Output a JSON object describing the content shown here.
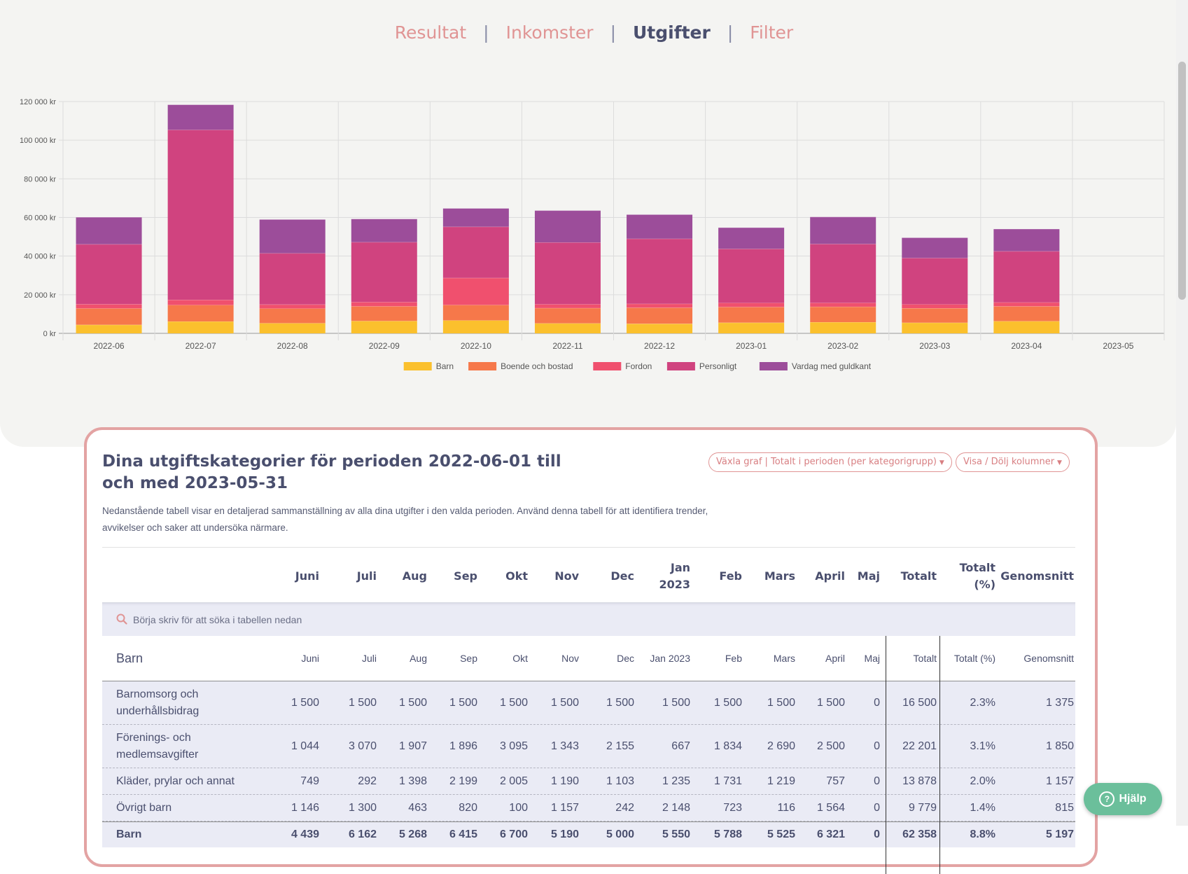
{
  "nav": {
    "tabs": [
      {
        "label": "Resultat",
        "active": false
      },
      {
        "label": "Inkomster",
        "active": false
      },
      {
        "label": "Utgifter",
        "active": true
      },
      {
        "label": "Filter",
        "active": false
      }
    ],
    "separator": "|"
  },
  "colors": {
    "barn": "#fbc02d",
    "boende": "#f6784a",
    "fordon": "#f0506e",
    "personligt": "#d0437f",
    "vardag": "#9c4d9a",
    "accent": "#e09494",
    "help": "#6bbf9b"
  },
  "chart_data": {
    "type": "bar",
    "stacked": true,
    "title": "",
    "xlabel": "",
    "ylabel": "",
    "ylim": [
      0,
      120000
    ],
    "yticks": [
      "0 kr",
      "20 000 kr",
      "40 000 kr",
      "60 000 kr",
      "80 000 kr",
      "100 000 kr",
      "120 000 kr"
    ],
    "grid": true,
    "legend_position": "bottom",
    "categories": [
      "2022-06",
      "2022-07",
      "2022-08",
      "2022-09",
      "2022-10",
      "2022-11",
      "2022-12",
      "2023-01",
      "2023-02",
      "2023-03",
      "2023-04",
      "2023-05"
    ],
    "series": [
      {
        "name": "Barn",
        "color": "#fbc02d",
        "values": [
          4439,
          6162,
          5268,
          6415,
          6700,
          5190,
          5000,
          5550,
          5788,
          5525,
          6321,
          0
        ]
      },
      {
        "name": "Boende och bostad",
        "color": "#f6784a",
        "values": [
          8500,
          8500,
          7600,
          7600,
          8000,
          7900,
          8300,
          8100,
          8000,
          7500,
          7700,
          0
        ]
      },
      {
        "name": "Fordon",
        "color": "#f0506e",
        "values": [
          2200,
          2700,
          2100,
          2200,
          14000,
          2000,
          2000,
          2100,
          2000,
          2000,
          2000,
          0
        ]
      },
      {
        "name": "Personligt",
        "color": "#d0437f",
        "values": [
          31000,
          88000,
          26500,
          31000,
          26500,
          32000,
          33700,
          28000,
          30500,
          24000,
          26500,
          0
        ]
      },
      {
        "name": "Vardag med guldkant",
        "color": "#9c4d9a",
        "values": [
          14000,
          13000,
          17500,
          12000,
          9500,
          16500,
          12500,
          11000,
          14000,
          10500,
          11500,
          0
        ]
      }
    ]
  },
  "card": {
    "title": "Dina utgiftskategorier för perioden 2022-06-01 till och med 2023-05-31",
    "toggle_graph_label": "Växla graf | Totalt i perioden (per kategorigrupp)",
    "toggle_columns_label": "Visa / Dölj kolumner",
    "description": "Nedanstående tabell visar en detaljerad sammanställning av alla dina utgifter i den valda perioden. Använd denna tabell för att identifiera trender, avvikelser och saker att undersöka närmare.",
    "column_headers": [
      "Juni",
      "Juli",
      "Aug",
      "Sep",
      "Okt",
      "Nov",
      "Dec",
      "Jan 2023",
      "Feb",
      "Mars",
      "April",
      "Maj",
      "Totalt",
      "Totalt (%)",
      "Genomsnitt"
    ],
    "search_placeholder": "Börja skriv för att söka i tabellen nedan"
  },
  "table": {
    "group_name": "Barn",
    "columns": [
      "Juni",
      "Juli",
      "Aug",
      "Sep",
      "Okt",
      "Nov",
      "Dec",
      "Jan 2023",
      "Feb",
      "Mars",
      "April",
      "Maj",
      "Totalt",
      "Totalt (%)",
      "Genomsnitt"
    ],
    "rows": [
      {
        "name": "Barnomsorg och underhållsbidrag",
        "values": [
          "1 500",
          "1 500",
          "1 500",
          "1 500",
          "1 500",
          "1 500",
          "1 500",
          "1 500",
          "1 500",
          "1 500",
          "1 500",
          "0",
          "16 500",
          "2.3%",
          "1 375"
        ]
      },
      {
        "name": "Förenings- och medlemsavgifter",
        "values": [
          "1 044",
          "3 070",
          "1 907",
          "1 896",
          "3 095",
          "1 343",
          "2 155",
          "667",
          "1 834",
          "2 690",
          "2 500",
          "0",
          "22 201",
          "3.1%",
          "1 850"
        ]
      },
      {
        "name": "Kläder, prylar och annat",
        "values": [
          "749",
          "292",
          "1 398",
          "2 199",
          "2 005",
          "1 190",
          "1 103",
          "1 235",
          "1 731",
          "1 219",
          "757",
          "0",
          "13 878",
          "2.0%",
          "1 157"
        ]
      },
      {
        "name": "Övrigt barn",
        "values": [
          "1 146",
          "1 300",
          "463",
          "820",
          "100",
          "1 157",
          "242",
          "2 148",
          "723",
          "116",
          "1 564",
          "0",
          "9 779",
          "1.4%",
          "815"
        ]
      }
    ],
    "sum_row": {
      "name": "Barn",
      "values": [
        "4 439",
        "6 162",
        "5 268",
        "6 415",
        "6 700",
        "5 190",
        "5 000",
        "5 550",
        "5 788",
        "5 525",
        "6 321",
        "0",
        "62 358",
        "8.8%",
        "5 197"
      ]
    }
  },
  "help": {
    "label": "Hjälp",
    "icon": "question-circle-icon"
  }
}
